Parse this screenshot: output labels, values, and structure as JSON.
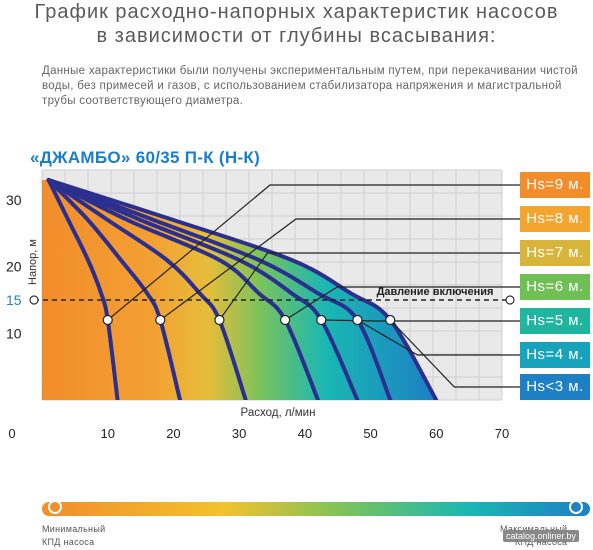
{
  "header": {
    "title_line1": "График расходно-напорных характеристик насосов",
    "title_line2": "в зависимости от глубины всасывания:",
    "description": "Данные характеристики были получены экспериментальным путем, при перекачивании чистой воды, без примесей и газов, с использованием стабилизатора напряжения и магистральной трубы соответствующего диаметра."
  },
  "chart_data": {
    "type": "line",
    "title": "«ДЖАМБО» 60/35 П-К (Н-К)",
    "xlabel": "Расход, л/мин",
    "ylabel": "Напор, м",
    "x_ticks": [
      "0",
      "10",
      "20",
      "30",
      "40",
      "50",
      "60",
      "70"
    ],
    "y_ticks": [
      "10",
      "15",
      "20",
      "30"
    ],
    "xlim": [
      0,
      70
    ],
    "ylim": [
      0,
      35
    ],
    "grid": true,
    "reference_line": {
      "y": 15,
      "label": "Давление включения"
    },
    "series": [
      {
        "name": "Hs=9 м.",
        "color": "#f28d2c",
        "x": [
          1,
          4,
          7,
          9,
          10,
          11.5
        ],
        "y": [
          33,
          27,
          21,
          16,
          12,
          0
        ]
      },
      {
        "name": "Hs=8 м.",
        "color": "#f2a630",
        "x": [
          1,
          7,
          12,
          16,
          18,
          21
        ],
        "y": [
          33,
          27,
          21,
          16,
          12,
          0
        ]
      },
      {
        "name": "Hs=7 м.",
        "color": "#d8b43a",
        "x": [
          1,
          10,
          19,
          24,
          27,
          31
        ],
        "y": [
          33,
          27,
          21,
          16,
          12,
          0
        ]
      },
      {
        "name": "Hs=6 м.",
        "color": "#6fbf55",
        "x": [
          1,
          13,
          27,
          33,
          37,
          42
        ],
        "y": [
          33,
          27,
          21,
          16,
          12,
          0
        ]
      },
      {
        "name": "Hs=5 м.",
        "color": "#1fb59f",
        "x": [
          1,
          15,
          30,
          38,
          42.5,
          48
        ],
        "y": [
          33,
          27,
          21,
          16,
          12,
          0
        ]
      },
      {
        "name": "Hs=4 м.",
        "color": "#18a3bd",
        "x": [
          1,
          17,
          33,
          42,
          48,
          53
        ],
        "y": [
          33,
          27,
          21,
          16,
          12,
          0
        ]
      },
      {
        "name": "Hs<3 м.",
        "color": "#1d7fc4",
        "x": [
          1,
          20,
          38,
          47,
          53,
          60
        ],
        "y": [
          33,
          27,
          21,
          16,
          12,
          0
        ]
      }
    ]
  },
  "efficiency_bar": {
    "min_label_line1": "Минимальный",
    "min_label_line2": "КПД насоса",
    "max_label_line1": "Максимальный",
    "max_label_line2": "КПД насоса",
    "min_color": "#f28d2c",
    "max_color": "#1d7fc4"
  },
  "watermark": "catalog.onliner.by"
}
